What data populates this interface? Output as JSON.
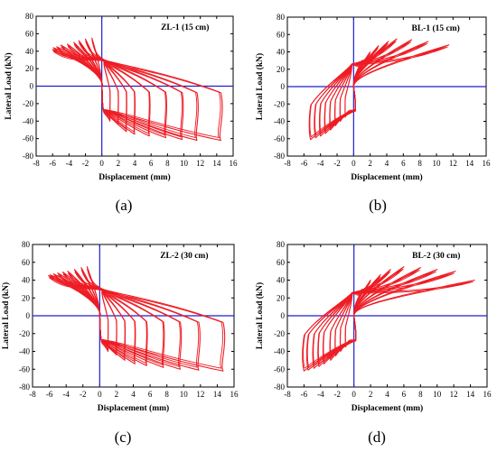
{
  "chart_data": [
    {
      "type": "line",
      "title": "ZL-1 (15 cm)",
      "xlabel": "Displacement (mm)",
      "ylabel": "Lateral Load (kN)",
      "xlim": [
        -8,
        16
      ],
      "ylim": [
        -80,
        80
      ],
      "xticks": [
        -8,
        -6,
        -4,
        -2,
        0,
        2,
        4,
        6,
        8,
        10,
        12,
        14,
        16
      ],
      "yticks": [
        -80,
        -60,
        -40,
        -20,
        0,
        20,
        40,
        60,
        80
      ],
      "caption": "(a)",
      "grid": false,
      "series": [
        {
          "color": "#ee1c24",
          "loops": [
            {
              "neg_disp": -1.2,
              "neg_load": 55,
              "pos_disp": 1.0,
              "pos_load": -40
            },
            {
              "neg_disp": -2.0,
              "neg_load": 54,
              "pos_disp": 2.0,
              "pos_load": -44
            },
            {
              "neg_disp": -2.8,
              "neg_load": 52,
              "pos_disp": 3.0,
              "pos_load": -52
            },
            {
              "neg_disp": -3.4,
              "neg_load": 50,
              "pos_disp": 4.0,
              "pos_load": -55
            },
            {
              "neg_disp": -4.2,
              "neg_load": 48,
              "pos_disp": 5.8,
              "pos_load": -57
            },
            {
              "neg_disp": -5.0,
              "neg_load": 47,
              "pos_disp": 7.8,
              "pos_load": -59
            },
            {
              "neg_disp": -5.5,
              "neg_load": 45,
              "pos_disp": 9.8,
              "pos_load": -61
            },
            {
              "neg_disp": -5.9,
              "neg_load": 44,
              "pos_disp": 11.6,
              "pos_load": -62
            },
            {
              "neg_disp": -6.0,
              "neg_load": 42,
              "pos_disp": 14.5,
              "pos_load": -62
            }
          ]
        }
      ]
    },
    {
      "type": "line",
      "title": "BL-1 (15 cm)",
      "xlabel": "Displacement (mm)",
      "ylabel": "Lateral Load (kN)",
      "xlim": [
        -8,
        16
      ],
      "ylim": [
        -80,
        80
      ],
      "xticks": [
        -8,
        -6,
        -4,
        -2,
        0,
        2,
        4,
        6,
        8,
        10,
        12,
        14,
        16
      ],
      "yticks": [
        -80,
        -60,
        -40,
        -20,
        0,
        20,
        40,
        60,
        80
      ],
      "caption": "(b)",
      "grid": false,
      "series": [
        {
          "color": "#ee1c24",
          "loops": [
            {
              "neg_disp": -1.0,
              "neg_load": -35,
              "pos_disp": 1.0,
              "pos_load": 30
            },
            {
              "neg_disp": -1.6,
              "neg_load": -40,
              "pos_disp": 2.0,
              "pos_load": 40
            },
            {
              "neg_disp": -2.2,
              "neg_load": -45,
              "pos_disp": 3.0,
              "pos_load": 47
            },
            {
              "neg_disp": -2.8,
              "neg_load": -50,
              "pos_disp": 4.2,
              "pos_load": 52
            },
            {
              "neg_disp": -3.4,
              "neg_load": -54,
              "pos_disp": 5.2,
              "pos_load": 55
            },
            {
              "neg_disp": -4.0,
              "neg_load": -57,
              "pos_disp": 7.0,
              "pos_load": 54
            },
            {
              "neg_disp": -4.6,
              "neg_load": -59,
              "pos_disp": 9.0,
              "pos_load": 52
            },
            {
              "neg_disp": -5.2,
              "neg_load": -61,
              "pos_disp": 11.5,
              "pos_load": 48
            }
          ]
        }
      ]
    },
    {
      "type": "line",
      "title": "ZL-2 (30 cm)",
      "xlabel": "Displacement (mm)",
      "ylabel": "Lateral Load (kN)",
      "xlim": [
        -8,
        16
      ],
      "ylim": [
        -80,
        80
      ],
      "xticks": [
        -8,
        -6,
        -4,
        -2,
        0,
        2,
        4,
        6,
        8,
        10,
        12,
        14,
        16
      ],
      "yticks": [
        -80,
        -60,
        -40,
        -20,
        0,
        20,
        40,
        60,
        80
      ],
      "caption": "(c)",
      "grid": false,
      "series": [
        {
          "color": "#ee1c24",
          "loops": [
            {
              "neg_disp": -1.5,
              "neg_load": 55,
              "pos_disp": 1.0,
              "pos_load": -40
            },
            {
              "neg_disp": -2.2,
              "neg_load": 54,
              "pos_disp": 2.0,
              "pos_load": -44
            },
            {
              "neg_disp": -3.0,
              "neg_load": 52,
              "pos_disp": 3.0,
              "pos_load": -50
            },
            {
              "neg_disp": -3.8,
              "neg_load": 50,
              "pos_disp": 4.2,
              "pos_load": -54
            },
            {
              "neg_disp": -4.4,
              "neg_load": 49,
              "pos_disp": 5.6,
              "pos_load": -56
            },
            {
              "neg_disp": -5.0,
              "neg_load": 48,
              "pos_disp": 7.6,
              "pos_load": -58
            },
            {
              "neg_disp": -5.5,
              "neg_load": 47,
              "pos_disp": 9.6,
              "pos_load": -60
            },
            {
              "neg_disp": -5.9,
              "neg_load": 46,
              "pos_disp": 11.8,
              "pos_load": -61
            },
            {
              "neg_disp": -6.1,
              "neg_load": 45,
              "pos_disp": 14.7,
              "pos_load": -62
            }
          ]
        }
      ]
    },
    {
      "type": "line",
      "title": "BL-2 (30 cm)",
      "xlabel": "Displacement (mm)",
      "ylabel": "Lateral Load (kN)",
      "xlim": [
        -8,
        16
      ],
      "ylim": [
        -80,
        80
      ],
      "xticks": [
        -8,
        -6,
        -4,
        -2,
        0,
        2,
        4,
        6,
        8,
        10,
        12,
        14,
        16
      ],
      "yticks": [
        -80,
        -60,
        -40,
        -20,
        0,
        20,
        40,
        60,
        80
      ],
      "caption": "(d)",
      "grid": false,
      "series": [
        {
          "color": "#ee1c24",
          "loops": [
            {
              "neg_disp": -1.0,
              "neg_load": -35,
              "pos_disp": 1.0,
              "pos_load": 30
            },
            {
              "neg_disp": -1.6,
              "neg_load": -40,
              "pos_disp": 2.0,
              "pos_load": 40
            },
            {
              "neg_disp": -2.2,
              "neg_load": -45,
              "pos_disp": 3.2,
              "pos_load": 46
            },
            {
              "neg_disp": -2.8,
              "neg_load": -50,
              "pos_disp": 4.4,
              "pos_load": 52
            },
            {
              "neg_disp": -3.6,
              "neg_load": -54,
              "pos_disp": 6.0,
              "pos_load": 55
            },
            {
              "neg_disp": -4.2,
              "neg_load": -57,
              "pos_disp": 8.0,
              "pos_load": 54
            },
            {
              "neg_disp": -4.8,
              "neg_load": -59,
              "pos_disp": 10.0,
              "pos_load": 52
            },
            {
              "neg_disp": -5.5,
              "neg_load": -61,
              "pos_disp": 12.2,
              "pos_load": 50
            },
            {
              "neg_disp": -6.0,
              "neg_load": -62,
              "pos_disp": 14.5,
              "pos_load": 40
            }
          ]
        }
      ]
    }
  ]
}
